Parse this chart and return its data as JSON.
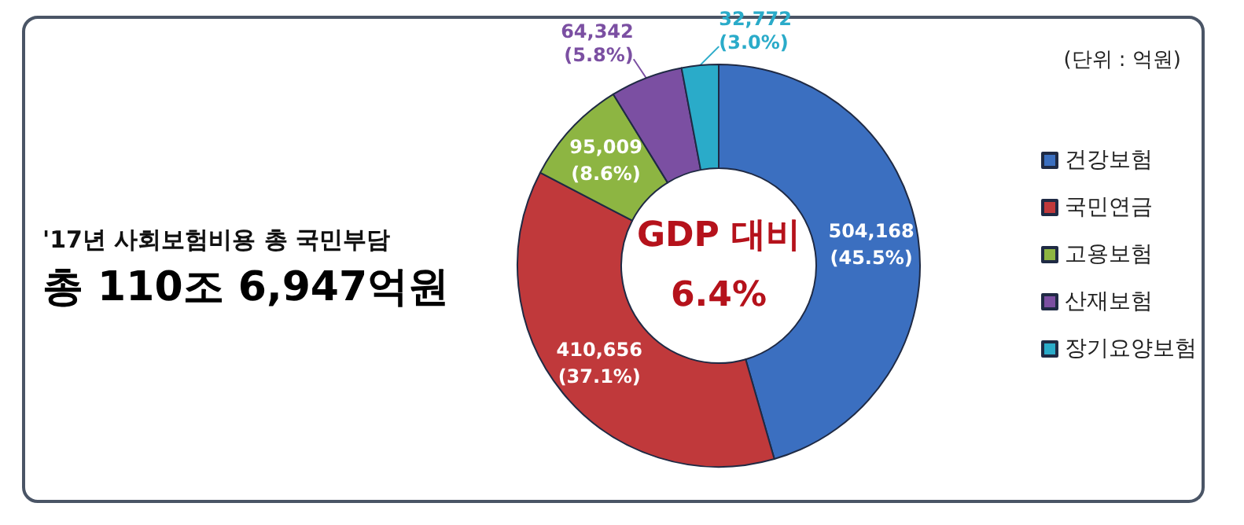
{
  "chart_data": {
    "type": "donut",
    "title": "'17년 사회보험비용 총 국민부담",
    "subtitle": "총 110조 6,947억원",
    "categories": [
      "건강보험",
      "국민연금",
      "고용보험",
      "산재보험",
      "장기요양보험"
    ],
    "values": [
      504168,
      410656,
      95009,
      64342,
      32772
    ],
    "colors": [
      "#3b6fc0",
      "#c0393b",
      "#8db542",
      "#7b4fa2",
      "#2aabc9"
    ],
    "value_labels": [
      "504,168\n(45.5%)",
      "410,656\n(37.1%)",
      "95,009\n(8.6%)",
      "64,342\n(5.8%)",
      "32,772\n(3.0%)"
    ],
    "annotations": [
      "(단위 : 억원)",
      "GDP 대비\n6.4%"
    ],
    "legend": "right"
  }
}
